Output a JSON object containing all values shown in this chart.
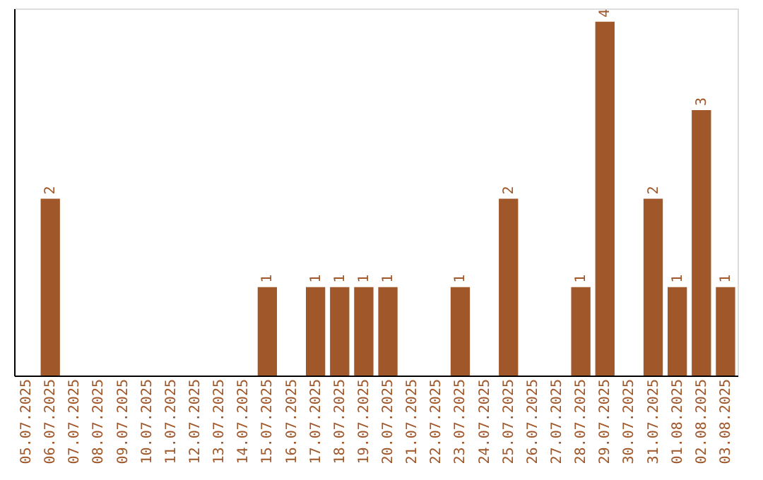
{
  "chart_data": {
    "type": "bar",
    "categories": [
      "05.07.2025",
      "06.07.2025",
      "07.07.2025",
      "08.07.2025",
      "09.07.2025",
      "10.07.2025",
      "11.07.2025",
      "12.07.2025",
      "13.07.2025",
      "14.07.2025",
      "15.07.2025",
      "16.07.2025",
      "17.07.2025",
      "18.07.2025",
      "19.07.2025",
      "20.07.2025",
      "21.07.2025",
      "22.07.2025",
      "23.07.2025",
      "24.07.2025",
      "25.07.2025",
      "26.07.2025",
      "27.07.2025",
      "28.07.2025",
      "29.07.2025",
      "30.07.2025",
      "31.07.2025",
      "01.08.2025",
      "02.08.2025",
      "03.08.2025"
    ],
    "values": [
      0,
      2,
      0,
      0,
      0,
      0,
      0,
      0,
      0,
      0,
      1,
      0,
      1,
      1,
      1,
      1,
      0,
      0,
      1,
      0,
      2,
      0,
      0,
      1,
      4,
      0,
      2,
      1,
      3,
      1
    ],
    "value_labels": [
      null,
      "2",
      null,
      null,
      null,
      null,
      null,
      null,
      null,
      null,
      "1",
      null,
      "1",
      "1",
      "1",
      "1",
      null,
      null,
      "1",
      null,
      "2",
      null,
      null,
      "1",
      "4",
      null,
      "2",
      "1",
      "3",
      "1"
    ],
    "color": "#a0572a",
    "ylim": [
      0,
      4.15
    ],
    "tick_labels": "x",
    "grid": false
  }
}
